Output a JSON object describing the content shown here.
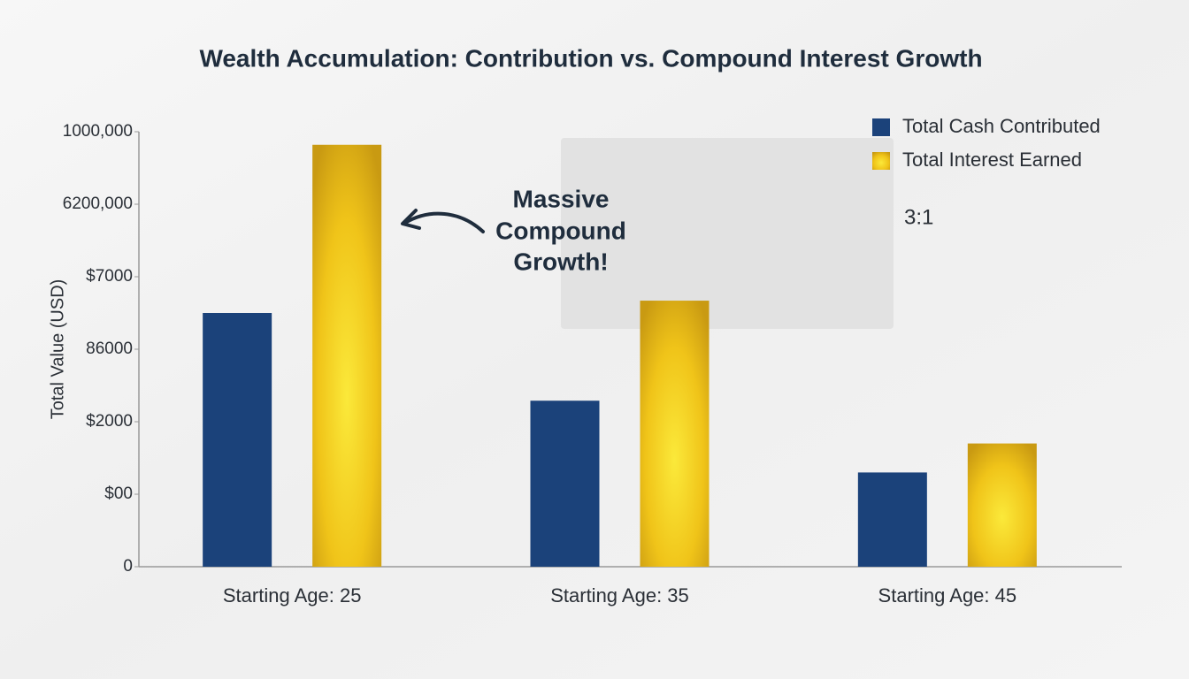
{
  "chart_data": {
    "type": "bar",
    "title": "Wealth Accumulation: Contribution vs. Compound Interest Growth",
    "y_label": "Total Value (USD)",
    "categories": [
      "Starting Age: 25",
      "Starting Age: 35",
      "Starting Age: 45"
    ],
    "series": [
      {
        "name": "Total Cash Contributed",
        "color": "#1b427a",
        "values": [
          3.5,
          2.29,
          1.3
        ]
      },
      {
        "name": "Total Interest Earned",
        "color": "#f0c419",
        "values": [
          5.82,
          3.67,
          1.7
        ]
      }
    ],
    "ylim": [
      0,
      6
    ],
    "yticks": [
      {
        "value": 0,
        "label": "0"
      },
      {
        "value": 1,
        "label": "$00"
      },
      {
        "value": 2,
        "label": "$2000"
      },
      {
        "value": 3,
        "label": "86000"
      },
      {
        "value": 4,
        "label": "$7000"
      },
      {
        "value": 5,
        "label": "6200,000"
      },
      {
        "value": 6,
        "label": "1000,000"
      }
    ],
    "annotation_lines": [
      "Massive",
      "Compound",
      "Growth!"
    ],
    "ratio_note": "3:1",
    "legend": "top-right"
  }
}
